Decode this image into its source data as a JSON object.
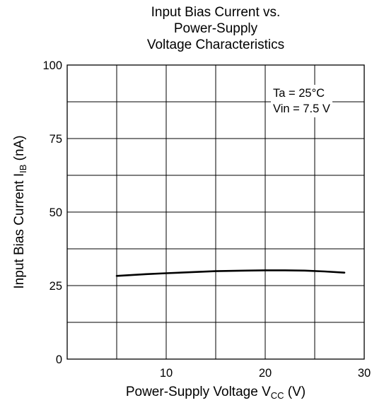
{
  "chart_data": {
    "type": "line",
    "title": [
      "Input Bias Current vs.",
      "Power-Supply",
      "Voltage Characteristics"
    ],
    "xlabel": {
      "text": "Power-Supply Voltage V",
      "sub": "CC",
      "unit": " (V)"
    },
    "ylabel": {
      "text": "Input Bias Current I",
      "sub": "IB",
      "unit": " (nA)"
    },
    "xlim": [
      0,
      30
    ],
    "ylim": [
      0,
      100
    ],
    "xticks": [
      10,
      20,
      30
    ],
    "yticks": [
      0,
      25,
      50,
      75,
      100
    ],
    "x_minor_grid": 5,
    "y_minor_grid": 12.5,
    "grid": true,
    "annotations": [
      "Ta = 25°C",
      "Vin = 7.5 V"
    ],
    "series": [
      {
        "x": [
          5,
          8,
          10,
          12,
          15,
          18,
          20,
          22,
          24,
          26,
          28
        ],
        "y": [
          28.3,
          28.9,
          29.2,
          29.5,
          29.9,
          30.1,
          30.2,
          30.2,
          30.1,
          29.8,
          29.4
        ]
      }
    ]
  }
}
